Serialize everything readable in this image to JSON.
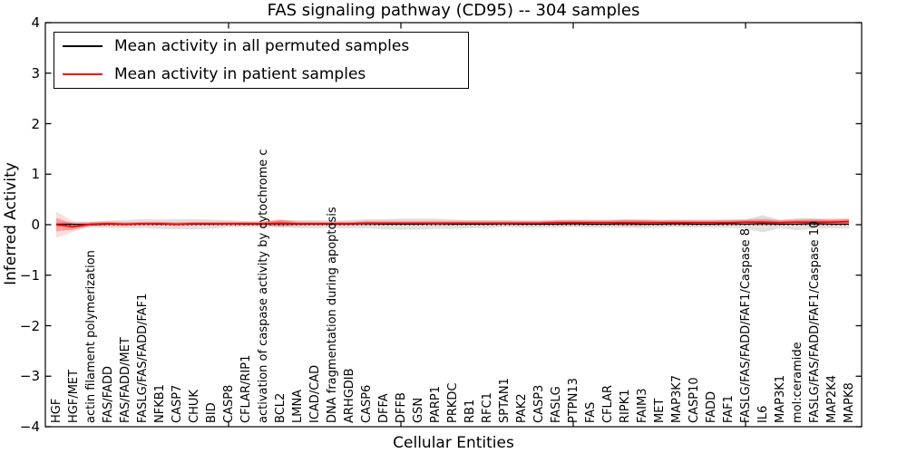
{
  "chart_data": {
    "type": "line",
    "title": "FAS signaling pathway (CD95) -- 304 samples",
    "xlabel": "Cellular Entities",
    "ylabel": "Inferred Activity",
    "ylim": [
      -4,
      4
    ],
    "yticks": [
      -4,
      -3,
      -2,
      -1,
      0,
      1,
      2,
      3,
      4
    ],
    "grid": false,
    "zero_line": true,
    "legend_position": "upper left",
    "categories": [
      "HGF",
      "HGF/MET",
      "actin filament polymerization",
      "FAS/FADD",
      "FAS/FADD/MET",
      "FASLG/FAS/FADD/FAF1",
      "NFKB1",
      "CASP7",
      "CHUK",
      "BID",
      "CASP8",
      "CFLAR/RIP1",
      "activation of caspase activity by cytochrome c",
      "BCL2",
      "LMNA",
      "ICAD/CAD",
      "DNA fragmentation during apoptosis",
      "ARHGDIB",
      "CASP6",
      "DFFA",
      "DFFB",
      "GSN",
      "PARP1",
      "PRKDC",
      "RB1",
      "RFC1",
      "SPTAN1",
      "PAK2",
      "CASP3",
      "FASLG",
      "PTPN13",
      "FAS",
      "CFLAR",
      "RIPK1",
      "FAIM3",
      "MET",
      "MAP3K7",
      "CASP10",
      "FADD",
      "FAF1",
      "FASLG/FAS/FADD/FAF1/Caspase 8",
      "IL6",
      "MAP3K1",
      "mol:ceramide",
      "FASLG/FAS/FADD/FAF1/Caspase 10",
      "MAP2K4",
      "MAPK8"
    ],
    "series": [
      {
        "name": "Mean activity in all permuted samples",
        "color": "#000000",
        "band_color": "#999999",
        "values": [
          0.01,
          0.01,
          0.0,
          0.01,
          0.01,
          0.02,
          0.01,
          0.01,
          0.01,
          0.01,
          0.02,
          0.01,
          0.01,
          0.02,
          0.01,
          0.01,
          0.01,
          0.01,
          0.02,
          0.01,
          0.01,
          0.01,
          0.02,
          0.01,
          0.01,
          0.01,
          0.02,
          0.01,
          0.01,
          0.01,
          0.02,
          0.01,
          0.01,
          0.02,
          0.01,
          0.01,
          0.02,
          0.01,
          0.01,
          0.02,
          0.01,
          0.02,
          0.01,
          0.01,
          0.02,
          0.01,
          0.01
        ],
        "band_halfwidth": [
          0.04,
          0.05,
          0.06,
          0.07,
          0.08,
          0.09,
          0.09,
          0.1,
          0.1,
          0.09,
          0.07,
          0.06,
          0.06,
          0.07,
          0.08,
          0.08,
          0.07,
          0.08,
          0.09,
          0.1,
          0.11,
          0.11,
          0.1,
          0.09,
          0.08,
          0.08,
          0.07,
          0.07,
          0.07,
          0.07,
          0.07,
          0.07,
          0.07,
          0.08,
          0.08,
          0.07,
          0.07,
          0.07,
          0.07,
          0.08,
          0.09,
          0.17,
          0.08,
          0.12,
          0.1,
          0.08,
          0.09
        ]
      },
      {
        "name": "Mean activity in patient samples",
        "color": "#ff0000",
        "band_color": "#ff0000",
        "values": [
          0.0,
          -0.04,
          0.01,
          0.02,
          0.01,
          0.02,
          0.02,
          0.01,
          0.02,
          0.02,
          0.02,
          0.02,
          0.02,
          0.03,
          0.02,
          0.02,
          0.02,
          0.02,
          0.03,
          0.03,
          0.03,
          0.03,
          0.03,
          0.03,
          0.03,
          0.03,
          0.03,
          0.03,
          0.03,
          0.04,
          0.04,
          0.04,
          0.04,
          0.04,
          0.04,
          0.04,
          0.04,
          0.04,
          0.04,
          0.04,
          0.05,
          0.05,
          0.04,
          0.05,
          0.05,
          0.05,
          0.06
        ],
        "band_halfwidth": [
          0.13,
          0.06,
          0.03,
          0.03,
          0.03,
          0.03,
          0.03,
          0.03,
          0.03,
          0.03,
          0.03,
          0.03,
          0.03,
          0.06,
          0.03,
          0.03,
          0.03,
          0.03,
          0.03,
          0.03,
          0.03,
          0.03,
          0.03,
          0.03,
          0.03,
          0.03,
          0.03,
          0.03,
          0.03,
          0.04,
          0.04,
          0.04,
          0.04,
          0.05,
          0.05,
          0.04,
          0.04,
          0.04,
          0.04,
          0.04,
          0.04,
          0.05,
          0.04,
          0.04,
          0.05,
          0.05,
          0.05
        ],
        "band_outer_halfwidth": [
          0.26,
          0.1,
          0.04,
          0.05,
          0.04,
          0.04,
          0.04,
          0.04,
          0.04,
          0.04,
          0.04,
          0.04,
          0.04,
          0.08,
          0.05,
          0.04,
          0.04,
          0.04,
          0.05,
          0.05,
          0.05,
          0.05,
          0.05,
          0.05,
          0.05,
          0.05,
          0.05,
          0.05,
          0.05,
          0.06,
          0.06,
          0.06,
          0.06,
          0.07,
          0.07,
          0.06,
          0.06,
          0.06,
          0.06,
          0.06,
          0.06,
          0.07,
          0.06,
          0.06,
          0.07,
          0.07,
          0.07
        ]
      }
    ]
  }
}
